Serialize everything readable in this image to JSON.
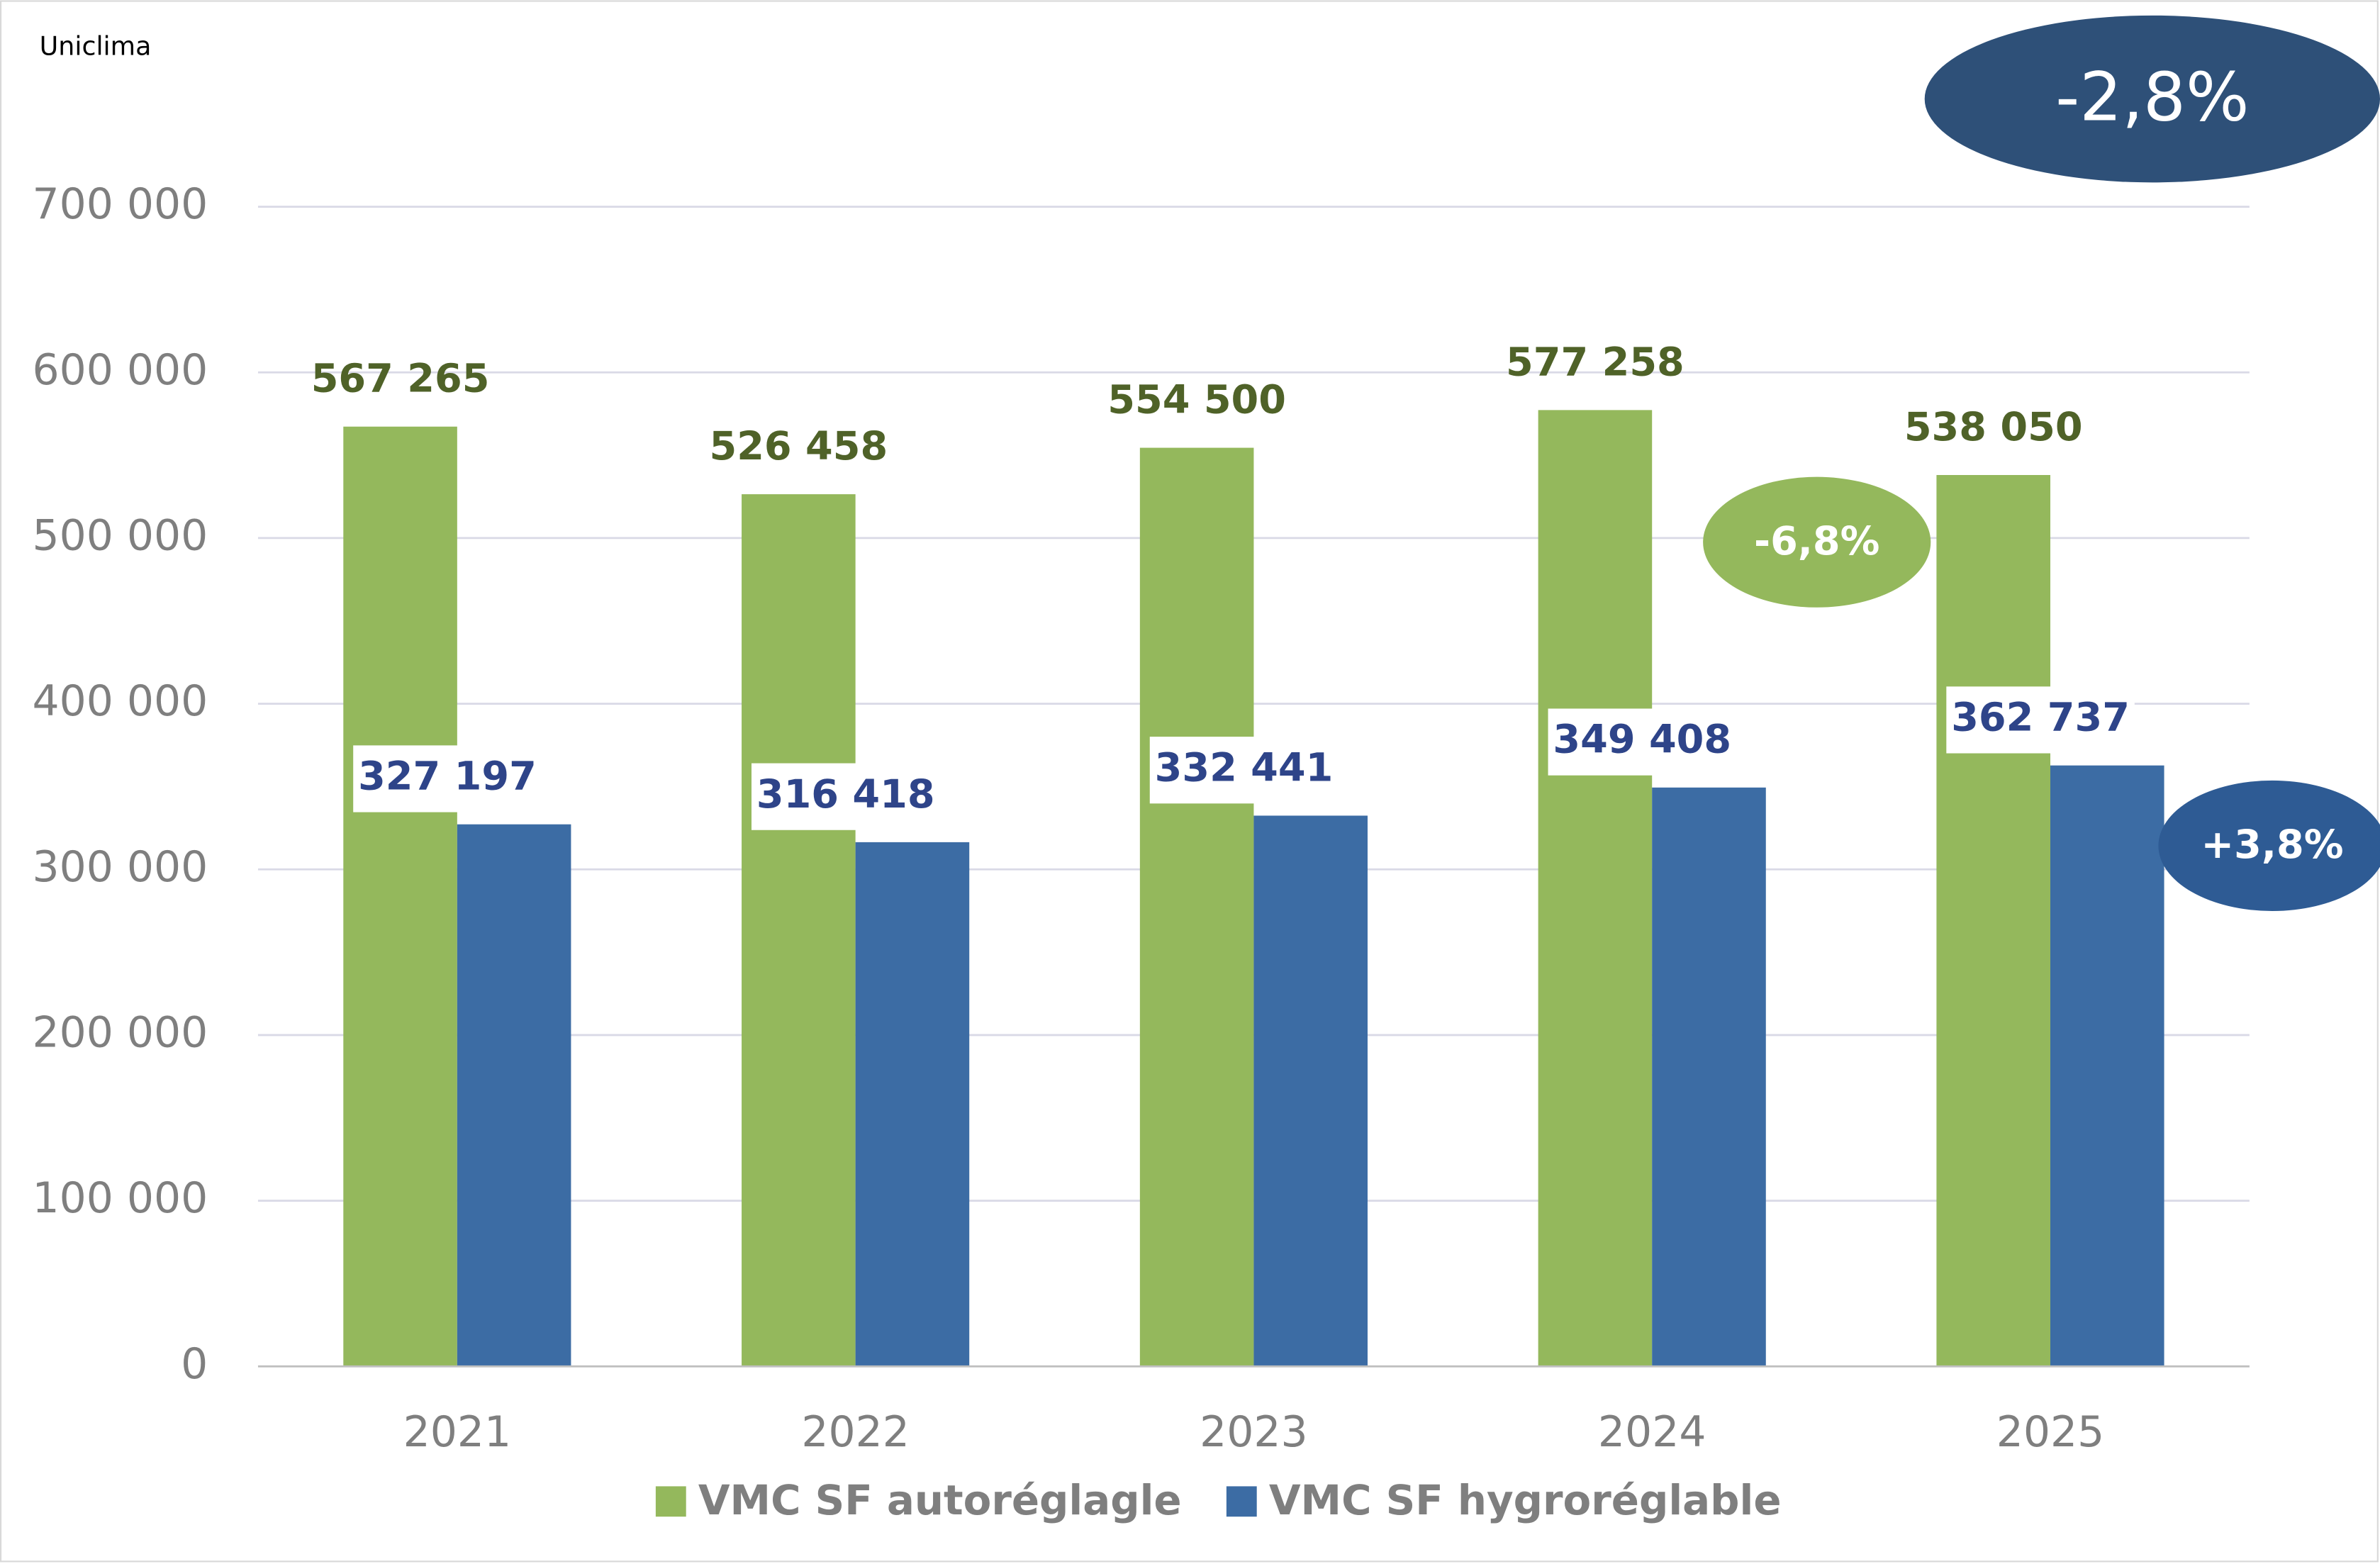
{
  "chart_data": {
    "type": "bar",
    "source": "Uniclima",
    "categories": [
      "2021",
      "2022",
      "2023",
      "2024",
      "2025"
    ],
    "series": [
      {
        "name": "VMC SF autoréglagle",
        "color": "#94b85c",
        "label_color": "#4f6228",
        "values": [
          567265,
          526458,
          554500,
          577258,
          538050
        ],
        "value_labels": [
          "567 265",
          "526 458",
          "554 500",
          "577 258",
          "538 050"
        ]
      },
      {
        "name": "VMC SF hygroréglable",
        "color": "#3c6ca4",
        "label_color": "#2e4489",
        "values": [
          327197,
          316418,
          332441,
          349408,
          362737
        ],
        "value_labels": [
          "327 197",
          "316 418",
          "332 441",
          "349 408",
          "362 737"
        ]
      }
    ],
    "ylim": [
      0,
      700000
    ],
    "yticks": [
      0,
      {
        "value": 100000,
        "label": "100 000"
      },
      {
        "value": 200000,
        "label": "200 000"
      },
      {
        "value": 300000,
        "label": "300 000"
      },
      {
        "value": 400000,
        "label": "400 000"
      },
      {
        "value": 500000,
        "label": "500 000"
      },
      {
        "value": 600000,
        "label": "600 000"
      },
      {
        "value": 700000,
        "label": "700 000"
      }
    ],
    "grid": true,
    "annotations": [
      "-2,8%",
      "-6,8%",
      "+3,8%"
    ]
  }
}
